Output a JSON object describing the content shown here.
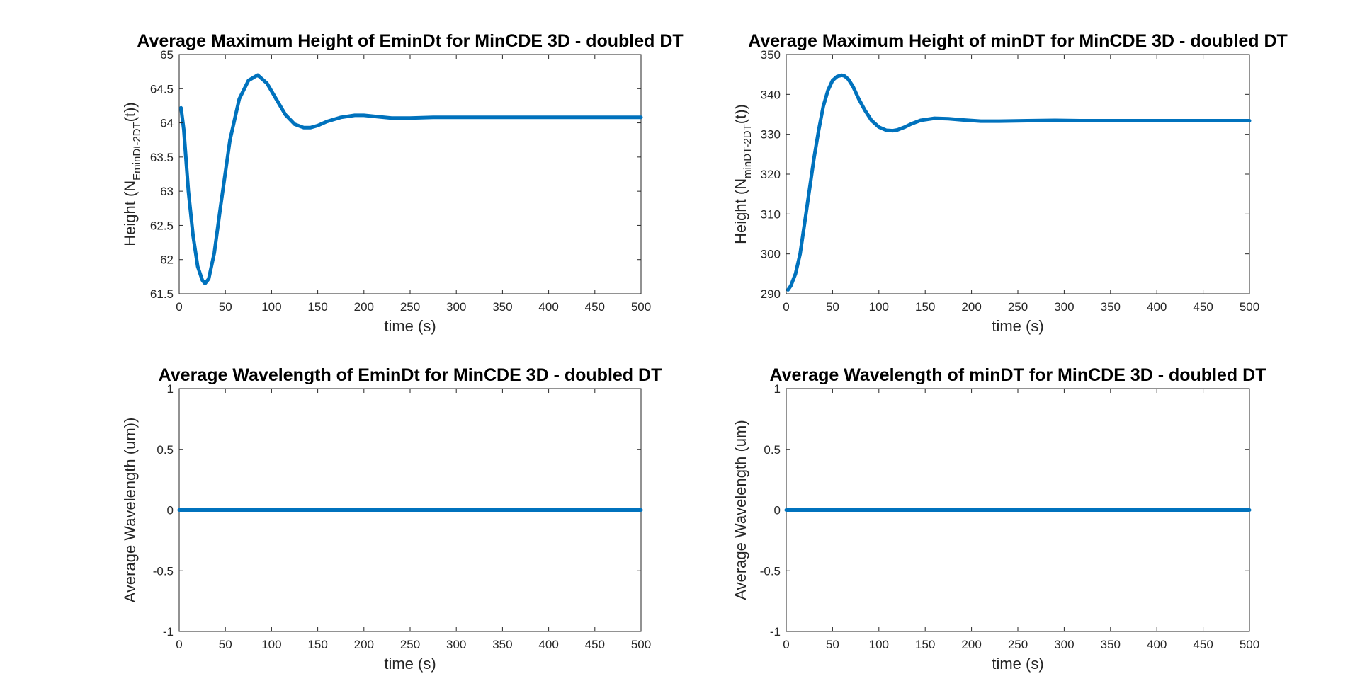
{
  "chart_data": [
    {
      "type": "line",
      "title": "Average Maximum Height of EminDt for MinCDE 3D - doubled DT",
      "xlabel": "time (s)",
      "ylabel": {
        "prefix": "Height (N",
        "sub": "EminDt-2DT",
        "suffix": "(t))"
      },
      "xlim": [
        0,
        500
      ],
      "ylim": [
        61.5,
        65
      ],
      "xticks": [
        0,
        50,
        100,
        150,
        200,
        250,
        300,
        350,
        400,
        450,
        500
      ],
      "yticks": [
        61.5,
        62,
        62.5,
        63,
        63.5,
        64,
        64.5,
        65
      ],
      "ytick_labels": [
        "61.5",
        "62",
        "62.5",
        "63",
        "63.5",
        "64",
        "64.5",
        "65"
      ],
      "grid": false,
      "color": "#0072BD",
      "series": [
        {
          "x": [
            2,
            5,
            10,
            15,
            20,
            25,
            28,
            32,
            38,
            45,
            55,
            65,
            75,
            85,
            95,
            105,
            115,
            125,
            135,
            142,
            150,
            160,
            175,
            190,
            200,
            215,
            230,
            250,
            275,
            300,
            350,
            400,
            450,
            500
          ],
          "values": [
            64.22,
            63.9,
            63.0,
            62.35,
            61.9,
            61.7,
            61.65,
            61.72,
            62.1,
            62.8,
            63.75,
            64.35,
            64.62,
            64.7,
            64.58,
            64.35,
            64.12,
            63.98,
            63.93,
            63.93,
            63.96,
            64.02,
            64.08,
            64.11,
            64.11,
            64.09,
            64.07,
            64.07,
            64.08,
            64.08,
            64.08,
            64.08,
            64.08,
            64.08
          ]
        }
      ]
    },
    {
      "type": "line",
      "title": "Average Maximum Height of minDT for MinCDE 3D - doubled DT",
      "xlabel": "time (s)",
      "ylabel": {
        "prefix": "Height (N",
        "sub": "minDT-2DT",
        "suffix": "(t))"
      },
      "xlim": [
        0,
        500
      ],
      "ylim": [
        290,
        350
      ],
      "xticks": [
        0,
        50,
        100,
        150,
        200,
        250,
        300,
        350,
        400,
        450,
        500
      ],
      "yticks": [
        290,
        300,
        310,
        320,
        330,
        340,
        350
      ],
      "ytick_labels": [
        "290",
        "300",
        "310",
        "320",
        "330",
        "340",
        "350"
      ],
      "grid": false,
      "color": "#0072BD",
      "series": [
        {
          "x": [
            2,
            5,
            10,
            15,
            20,
            25,
            30,
            35,
            40,
            45,
            50,
            55,
            60,
            63,
            67,
            72,
            78,
            85,
            92,
            100,
            108,
            115,
            120,
            128,
            135,
            145,
            160,
            175,
            190,
            210,
            230,
            260,
            290,
            320,
            360,
            400,
            450,
            500
          ],
          "values": [
            291,
            292,
            295,
            300,
            308,
            316,
            324,
            331,
            337,
            341,
            343.5,
            344.5,
            344.8,
            344.6,
            343.8,
            342,
            339,
            336,
            333.5,
            331.8,
            331,
            330.9,
            331.1,
            331.8,
            332.6,
            333.5,
            334,
            333.9,
            333.6,
            333.3,
            333.3,
            333.4,
            333.5,
            333.4,
            333.4,
            333.4,
            333.4,
            333.4
          ]
        }
      ]
    },
    {
      "type": "line",
      "title": "Average Wavelength of EminDt for MinCDE 3D - doubled DT",
      "xlabel": "time (s)",
      "ylabel": {
        "prefix": "Average Wavelength (um))",
        "sub": "",
        "suffix": ""
      },
      "xlim": [
        0,
        500
      ],
      "ylim": [
        -1,
        1
      ],
      "xticks": [
        0,
        50,
        100,
        150,
        200,
        250,
        300,
        350,
        400,
        450,
        500
      ],
      "yticks": [
        -1,
        -0.5,
        0,
        0.5,
        1
      ],
      "ytick_labels": [
        "-1",
        "-0.5",
        "0",
        "0.5",
        "1"
      ],
      "grid": false,
      "color": "#0072BD",
      "series": [
        {
          "x": [
            0,
            500
          ],
          "values": [
            0,
            0
          ]
        }
      ]
    },
    {
      "type": "line",
      "title": "Average Wavelength of minDT for MinCDE 3D - doubled DT",
      "xlabel": "time (s)",
      "ylabel": {
        "prefix": "Average Wavelength (um)",
        "sub": "",
        "suffix": ""
      },
      "xlim": [
        0,
        500
      ],
      "ylim": [
        -1,
        1
      ],
      "xticks": [
        0,
        50,
        100,
        150,
        200,
        250,
        300,
        350,
        400,
        450,
        500
      ],
      "yticks": [
        -1,
        -0.5,
        0,
        0.5,
        1
      ],
      "ytick_labels": [
        "-1",
        "-0.5",
        "0",
        "0.5",
        "1"
      ],
      "grid": false,
      "color": "#0072BD",
      "series": [
        {
          "x": [
            0,
            500
          ],
          "values": [
            0,
            0
          ]
        }
      ]
    }
  ]
}
